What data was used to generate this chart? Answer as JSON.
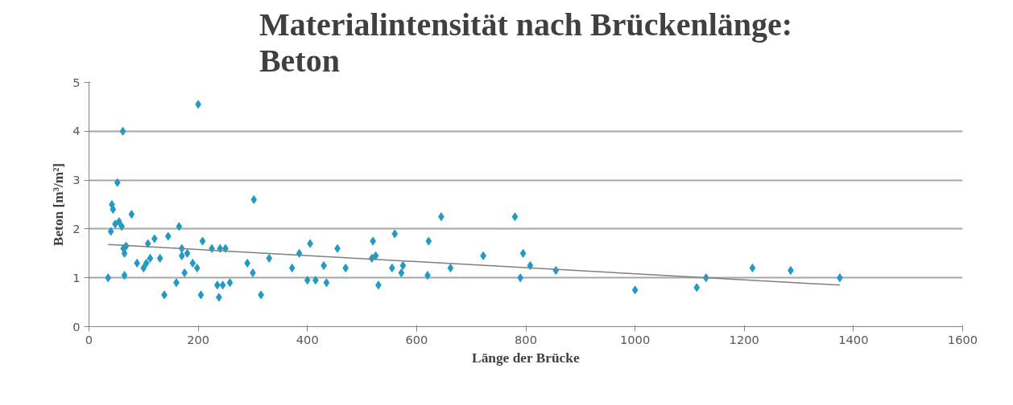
{
  "chart_data": {
    "type": "scatter",
    "title": "Materialintensität nach Brückenlänge:\nBeton",
    "xlabel": "Länge der Brücke",
    "ylabel": "Beton [m³/m²]",
    "xlim": [
      0,
      1600
    ],
    "xticks": [
      0,
      200,
      400,
      600,
      800,
      1000,
      1200,
      1400,
      1600
    ],
    "ylim": [
      0,
      5
    ],
    "yticks": [
      0,
      1,
      2,
      3,
      4,
      5
    ],
    "grid": "y",
    "marker": "diamond",
    "series": [
      {
        "color": "#1f9bc4",
        "x": [
          35,
          40,
          42,
          44,
          48,
          52,
          55,
          60,
          62,
          63,
          65,
          65,
          68,
          78,
          88,
          100,
          105,
          108,
          112,
          120,
          130,
          138,
          145,
          160,
          165,
          170,
          170,
          175,
          180,
          190,
          198,
          200,
          205,
          208,
          225,
          235,
          238,
          240,
          245,
          250,
          258,
          290,
          300,
          302,
          315,
          330,
          372,
          385,
          400,
          405,
          415,
          430,
          435,
          455,
          470,
          518,
          520,
          525,
          530,
          555,
          560,
          572,
          575,
          620,
          622,
          645,
          662,
          722,
          780,
          790,
          795,
          808,
          855,
          1000,
          1113,
          1130,
          1215,
          1285,
          1375
        ],
        "values": [
          1.0,
          1.95,
          2.5,
          2.4,
          2.1,
          2.95,
          2.15,
          2.05,
          4.0,
          1.6,
          1.5,
          1.05,
          1.65,
          2.3,
          1.3,
          1.2,
          1.3,
          1.7,
          1.4,
          1.8,
          1.4,
          0.65,
          1.85,
          0.9,
          2.05,
          1.6,
          1.45,
          1.1,
          1.5,
          1.3,
          1.2,
          4.55,
          0.65,
          1.75,
          1.6,
          0.85,
          0.6,
          1.6,
          0.85,
          1.6,
          0.9,
          1.3,
          1.1,
          2.6,
          0.65,
          1.4,
          1.2,
          1.5,
          0.95,
          1.7,
          0.95,
          1.25,
          0.9,
          1.6,
          1.2,
          1.4,
          1.75,
          1.45,
          0.85,
          1.2,
          1.9,
          1.1,
          1.25,
          1.05,
          1.75,
          2.25,
          1.2,
          1.45,
          2.25,
          1.0,
          1.5,
          1.25,
          1.15,
          0.75,
          0.8,
          1.0,
          1.2,
          1.15,
          1.0
        ]
      },
      {
        "type": "line",
        "marker": "none",
        "color": "#7f7f7f",
        "x": [
          35,
          1375
        ],
        "values": [
          1.68,
          0.85
        ]
      }
    ]
  }
}
